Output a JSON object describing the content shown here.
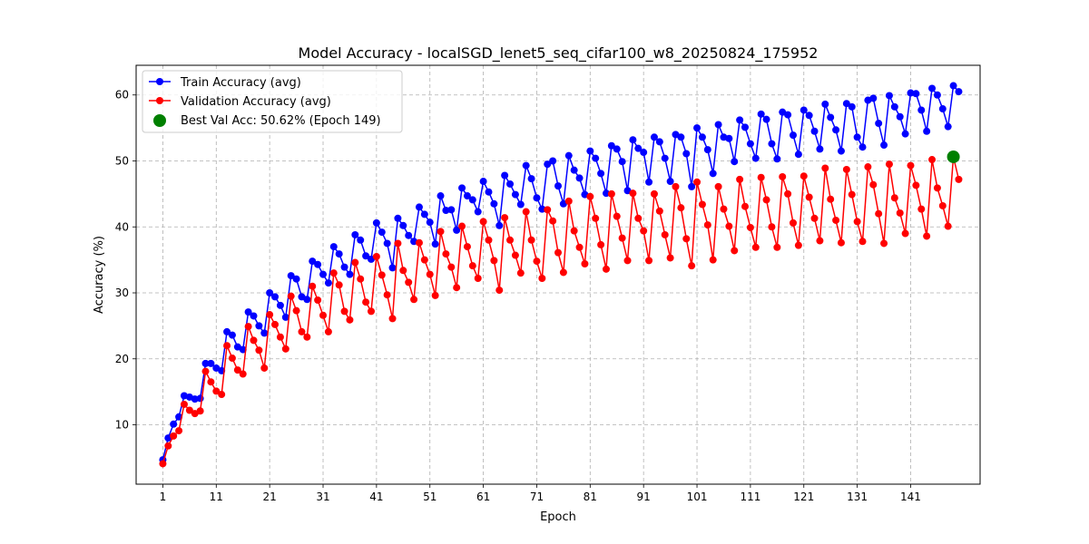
{
  "chart_data": {
    "type": "line",
    "title": "Model Accuracy - localSGD_lenet5_seq_cifar100_w8_20250824_175952",
    "xlabel": "Epoch",
    "ylabel": "Accuracy (%)",
    "xlim": [
      -4,
      154
    ],
    "ylim": [
      1,
      64.5
    ],
    "xticks": [
      1,
      11,
      21,
      31,
      41,
      51,
      61,
      71,
      81,
      91,
      101,
      111,
      121,
      131,
      141
    ],
    "yticks": [
      10,
      20,
      30,
      40,
      50,
      60
    ],
    "grid": true,
    "legend_position": "top-left",
    "colors": {
      "train": "#0000ff",
      "val": "#ff0000",
      "best": "#008000"
    },
    "x_start": 1,
    "series": [
      {
        "name": "Train Accuracy (avg)",
        "color": "#0000ff",
        "values": [
          4.7,
          8.0,
          10.1,
          11.2,
          14.4,
          14.2,
          13.9,
          14.0,
          19.3,
          19.3,
          18.6,
          18.2,
          24.1,
          23.6,
          21.8,
          21.4,
          27.1,
          26.5,
          25.0,
          23.9,
          30.0,
          29.4,
          28.1,
          26.3,
          32.6,
          32.1,
          29.4,
          29.0,
          34.8,
          34.3,
          32.8,
          31.5,
          37.0,
          35.9,
          33.9,
          32.8,
          38.8,
          38.0,
          35.6,
          35.1,
          40.6,
          39.2,
          37.5,
          33.8,
          41.3,
          40.2,
          38.7,
          37.8,
          43.0,
          41.9,
          40.7,
          37.4,
          44.7,
          42.5,
          42.6,
          39.5,
          45.9,
          44.7,
          44.1,
          42.3,
          46.9,
          45.3,
          43.5,
          40.2,
          47.8,
          46.5,
          44.9,
          43.4,
          49.3,
          47.3,
          44.4,
          42.7,
          49.5,
          50.0,
          46.2,
          43.5,
          50.8,
          48.6,
          47.4,
          44.9,
          51.5,
          50.4,
          48.1,
          45.1,
          52.3,
          51.8,
          49.9,
          45.5,
          53.2,
          51.9,
          51.3,
          46.8,
          53.6,
          52.9,
          50.4,
          46.9,
          54.0,
          53.6,
          51.1,
          46.1,
          55.0,
          53.6,
          51.7,
          48.1,
          55.5,
          53.6,
          53.4,
          49.9,
          56.2,
          55.1,
          52.6,
          50.4,
          57.1,
          56.3,
          52.6,
          50.3,
          57.4,
          57.0,
          53.9,
          51.0,
          57.7,
          56.9,
          54.5,
          51.8,
          58.6,
          56.6,
          54.7,
          51.5,
          58.7,
          58.2,
          53.6,
          52.1,
          59.2,
          59.5,
          55.7,
          52.4,
          59.9,
          58.2,
          56.7,
          54.1,
          60.3,
          60.2,
          57.7,
          54.5,
          61.0,
          60.0,
          57.9,
          55.2,
          61.4,
          60.5
        ]
      },
      {
        "name": "Validation Accuracy (avg)",
        "color": "#ff0000",
        "values": [
          4.1,
          6.8,
          8.3,
          9.1,
          13.1,
          12.2,
          11.7,
          12.1,
          18.1,
          16.5,
          15.1,
          14.6,
          22.0,
          20.1,
          18.3,
          17.7,
          24.9,
          22.8,
          21.3,
          18.6,
          26.7,
          25.2,
          23.3,
          21.5,
          29.5,
          27.3,
          24.1,
          23.3,
          31.0,
          28.9,
          26.6,
          24.1,
          33.0,
          31.2,
          27.2,
          25.9,
          34.6,
          32.1,
          28.6,
          27.2,
          35.5,
          32.7,
          29.7,
          26.1,
          37.5,
          33.4,
          31.6,
          29.0,
          37.6,
          35.0,
          32.8,
          29.6,
          39.3,
          35.9,
          33.9,
          30.8,
          40.1,
          37.0,
          34.1,
          32.2,
          40.8,
          38.0,
          34.9,
          30.4,
          41.4,
          38.0,
          35.7,
          33.0,
          42.3,
          38.0,
          34.8,
          32.2,
          42.6,
          40.9,
          36.1,
          33.1,
          43.9,
          39.4,
          36.9,
          34.4,
          44.6,
          41.3,
          37.3,
          33.6,
          45.0,
          41.6,
          38.3,
          34.9,
          45.1,
          41.3,
          39.4,
          34.9,
          45.0,
          42.4,
          38.8,
          35.3,
          46.1,
          42.9,
          38.2,
          34.1,
          46.8,
          43.4,
          40.3,
          35.0,
          46.1,
          42.7,
          40.1,
          36.4,
          47.2,
          43.1,
          39.9,
          36.9,
          47.5,
          44.1,
          40.0,
          36.9,
          47.6,
          45.0,
          40.6,
          37.2,
          47.7,
          44.5,
          41.3,
          37.9,
          48.9,
          44.2,
          41.0,
          37.6,
          48.7,
          44.9,
          40.8,
          37.8,
          49.1,
          46.4,
          42.0,
          37.5,
          49.5,
          44.4,
          42.1,
          39.0,
          49.3,
          46.3,
          42.7,
          38.6,
          50.2,
          45.9,
          43.2,
          40.1,
          50.6,
          47.2
        ]
      }
    ],
    "best": {
      "label": "Best Val Acc: 50.62% (Epoch 149)",
      "epoch": 149,
      "value": 50.62,
      "color": "#008000"
    }
  }
}
